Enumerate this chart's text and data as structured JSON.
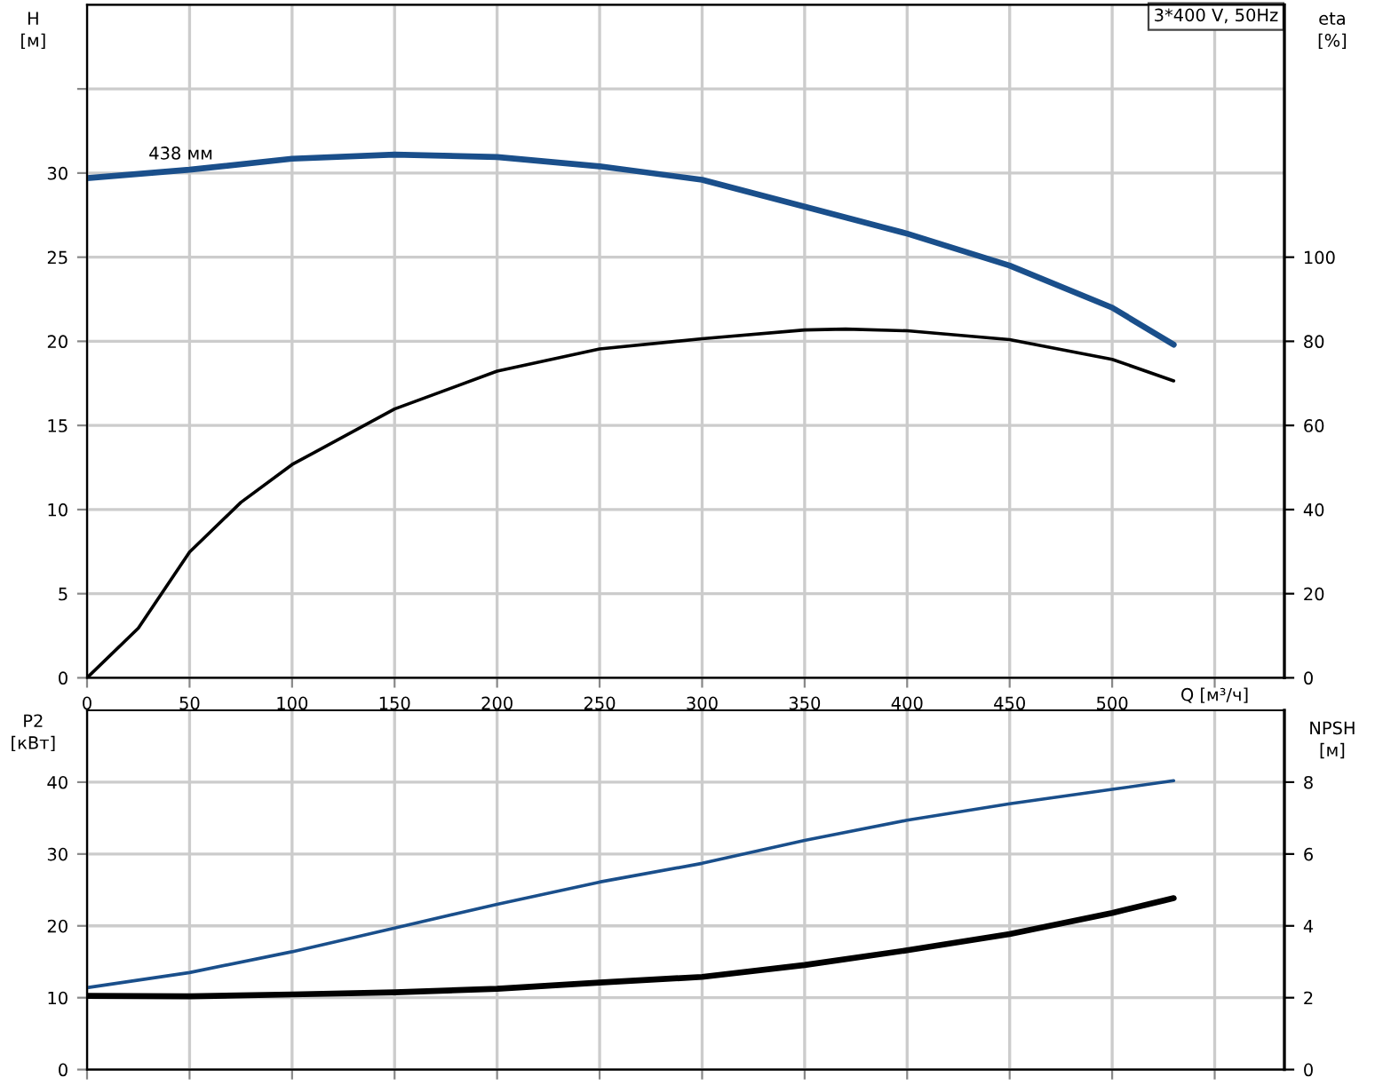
{
  "chart_data": [
    {
      "type": "line",
      "title": "3*400 V, 50Hz",
      "ylabel": "H\n[м]",
      "y2label": "eta\n[%]",
      "xlabel": "Q [м³/ч]",
      "x": [
        0,
        50,
        100,
        150,
        200,
        250,
        300,
        350,
        400,
        450,
        500,
        530
      ],
      "series": [
        {
          "color": "#1a4f8b",
          "values": [
            29.7,
            30.2,
            30.85,
            31.1,
            30.95,
            30.4,
            29.6,
            28.0,
            26.4,
            24.5,
            22.0,
            19.8
          ]
        },
        {
          "color": "#000000",
          "axis": "y2",
          "x": [
            0,
            25,
            50,
            75,
            100,
            150,
            200,
            250,
            300,
            350,
            370,
            400,
            450,
            500,
            530
          ],
          "values": [
            0,
            11.8,
            29.9,
            41.7,
            50.7,
            63.9,
            72.9,
            78.2,
            80.6,
            82.7,
            82.9,
            82.5,
            80.4,
            75.7,
            70.6
          ]
        }
      ],
      "xlim": [
        0,
        584
      ],
      "xticks": [
        0,
        50,
        100,
        150,
        200,
        250,
        300,
        350,
        400,
        450,
        500,
        {
          "value": 550,
          "label": null
        }
      ],
      "ylim": [
        0,
        40
      ],
      "yticks": [
        0,
        5,
        10,
        15,
        20,
        25,
        30,
        {
          "value": 35,
          "label": null
        }
      ],
      "y2lim": [
        0,
        160
      ],
      "y2ticks": [
        0,
        20,
        40,
        60,
        80,
        100
      ],
      "grid": true,
      "legend": false,
      "annotations": [
        {
          "text": "438 мм",
          "x": 30,
          "y": 30.6
        }
      ]
    },
    {
      "type": "line",
      "ylabel": "P2\n[кВт]",
      "y2label": "NPSH\n[м]",
      "x": [
        0,
        50,
        100,
        150,
        200,
        250,
        300,
        350,
        400,
        450,
        500,
        530
      ],
      "series": [
        {
          "color": "#1a4f8b",
          "values": [
            11.4,
            13.5,
            16.4,
            19.7,
            23.0,
            26.1,
            28.7,
            31.9,
            34.7,
            37.0,
            39.0,
            40.2
          ]
        },
        {
          "color": "#000000",
          "axis": "y2",
          "values": [
            2.05,
            2.04,
            2.09,
            2.15,
            2.25,
            2.42,
            2.58,
            2.91,
            3.32,
            3.77,
            4.36,
            4.77
          ]
        }
      ],
      "xlim": [
        0,
        584
      ],
      "xticks": [
        0,
        50,
        100,
        150,
        200,
        250,
        300,
        350,
        400,
        450,
        500,
        550
      ],
      "ylim": [
        0,
        50
      ],
      "yticks": [
        0,
        10,
        20,
        30,
        40
      ],
      "y2lim": [
        0,
        10
      ],
      "y2ticks": [
        0,
        2,
        4,
        6,
        8
      ],
      "grid": true,
      "legend": false,
      "tick_labels": "y"
    }
  ]
}
